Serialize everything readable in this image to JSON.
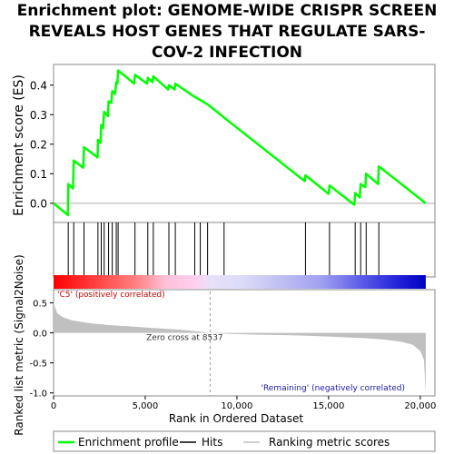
{
  "chart_data": [
    {
      "type": "line",
      "title": "Enrichment plot: GENOME-WIDE CRISPR SCREEN REVEALS HOST GENES THAT REGULATE SARS-COV-2 INFECTION",
      "title_lines": [
        "Enrichment plot: GENOME-WIDE CRISPR SCREEN",
        "REVEALS HOST GENES THAT REGULATE SARS-",
        "COV-2 INFECTION"
      ],
      "ylabel": "Enrichment score (ES)",
      "xlim": [
        0,
        20800
      ],
      "ylim": [
        -0.065,
        0.47
      ],
      "yticks": [
        0.0,
        0.1,
        0.2,
        0.3,
        0.4
      ],
      "ytick_labels": [
        "0.0",
        "0.1",
        "0.2",
        "0.3",
        "0.4"
      ],
      "color": "#00ff00",
      "series": [
        {
          "points": [
            [
              0,
              0.0
            ],
            [
              780,
              -0.04
            ],
            [
              800,
              0.065
            ],
            [
              1060,
              0.05
            ],
            [
              1100,
              0.145
            ],
            [
              1620,
              0.12
            ],
            [
              1660,
              0.19
            ],
            [
              2400,
              0.155
            ],
            [
              2420,
              0.215
            ],
            [
              2560,
              0.205
            ],
            [
              2600,
              0.265
            ],
            [
              2700,
              0.255
            ],
            [
              2760,
              0.31
            ],
            [
              2960,
              0.295
            ],
            [
              3000,
              0.345
            ],
            [
              3150,
              0.34
            ],
            [
              3200,
              0.38
            ],
            [
              3350,
              0.37
            ],
            [
              3420,
              0.41
            ],
            [
              3480,
              0.405
            ],
            [
              3520,
              0.45
            ],
            [
              4400,
              0.405
            ],
            [
              4440,
              0.435
            ],
            [
              5100,
              0.405
            ],
            [
              5140,
              0.425
            ],
            [
              5400,
              0.41
            ],
            [
              5440,
              0.43
            ],
            [
              6250,
              0.385
            ],
            [
              6290,
              0.4
            ],
            [
              6600,
              0.385
            ],
            [
              6640,
              0.405
            ],
            [
              7700,
              0.36
            ],
            [
              8000,
              0.35
            ],
            [
              8400,
              0.335
            ],
            [
              9300,
              0.29
            ],
            [
              13700,
              0.075
            ],
            [
              13740,
              0.095
            ],
            [
              15000,
              0.032
            ],
            [
              15050,
              0.06
            ],
            [
              16400,
              -0.005
            ],
            [
              16450,
              0.035
            ],
            [
              16700,
              0.02
            ],
            [
              16750,
              0.065
            ],
            [
              17000,
              0.055
            ],
            [
              17050,
              0.1
            ],
            [
              17700,
              0.065
            ],
            [
              17740,
              0.125
            ],
            [
              20300,
              0.0
            ]
          ]
        }
      ]
    },
    {
      "type": "scatter",
      "name": "hits",
      "hits": [
        800,
        1100,
        1660,
        2420,
        2600,
        2760,
        3000,
        3200,
        3420,
        3520,
        4440,
        5140,
        5440,
        6290,
        6640,
        7700,
        8000,
        8400,
        9300,
        13740,
        15050,
        16450,
        16750,
        17050,
        17740
      ]
    },
    {
      "type": "heatmap",
      "name": "ranking-bar",
      "label_left": "'C5' (positively correlated)",
      "label_right": "'Remaining' (negatively correlated)",
      "xlim": [
        0,
        20300
      ],
      "stops": [
        [
          0,
          "#ff0000"
        ],
        [
          0.12,
          "#ff4545"
        ],
        [
          0.22,
          "#ff8080"
        ],
        [
          0.3,
          "#ffc0d8"
        ],
        [
          0.38,
          "#ffd0f0"
        ],
        [
          0.42,
          "#e8e0f8"
        ],
        [
          0.5,
          "#dcdcf8"
        ],
        [
          0.58,
          "#c8c8f4"
        ],
        [
          0.72,
          "#a0a0f0"
        ],
        [
          0.82,
          "#6060e8"
        ],
        [
          0.93,
          "#2020d8"
        ],
        [
          1.0,
          "#0000c0"
        ]
      ]
    },
    {
      "type": "area",
      "ylabel": "Ranked list metric (Signal2Noise)",
      "xlabel": "Rank in Ordered Dataset",
      "xlim": [
        0,
        20800
      ],
      "ylim": [
        -1.05,
        0.72
      ],
      "xticks": [
        0,
        5000,
        10000,
        15000,
        20000
      ],
      "xtick_labels": [
        "0",
        "5,000",
        "10,000",
        "15,000",
        "20,000"
      ],
      "yticks": [
        -1.0,
        -0.5,
        0.0,
        0.5
      ],
      "ytick_labels": [
        "-1.0",
        "-0.5",
        "0.0",
        "0.5"
      ],
      "zero_cross": 8537,
      "zero_cross_label": "Zero cross at 8537",
      "fill": "#c0c0c0",
      "profile": [
        [
          0,
          0.55
        ],
        [
          50,
          0.45
        ],
        [
          200,
          0.33
        ],
        [
          500,
          0.26
        ],
        [
          1000,
          0.21
        ],
        [
          2000,
          0.16
        ],
        [
          3000,
          0.13
        ],
        [
          4000,
          0.11
        ],
        [
          5000,
          0.09
        ],
        [
          6000,
          0.07
        ],
        [
          7000,
          0.05
        ],
        [
          8000,
          0.02
        ],
        [
          8537,
          0.0
        ],
        [
          9000,
          -0.01
        ],
        [
          10000,
          -0.02
        ],
        [
          11000,
          -0.03
        ],
        [
          12000,
          -0.035
        ],
        [
          13000,
          -0.04
        ],
        [
          14000,
          -0.05
        ],
        [
          15000,
          -0.06
        ],
        [
          16000,
          -0.075
        ],
        [
          17000,
          -0.09
        ],
        [
          18000,
          -0.11
        ],
        [
          19000,
          -0.15
        ],
        [
          19600,
          -0.2
        ],
        [
          20000,
          -0.3
        ],
        [
          20200,
          -0.45
        ],
        [
          20300,
          -1.0
        ]
      ]
    }
  ],
  "legend": {
    "placement": "bottom",
    "items": [
      {
        "label": "Enrichment profile",
        "color": "#00ff00",
        "kind": "line"
      },
      {
        "label": "Hits",
        "color": "#000000",
        "kind": "line"
      },
      {
        "label": "Ranking metric scores",
        "color": "#c0c0c0",
        "kind": "line"
      }
    ]
  }
}
